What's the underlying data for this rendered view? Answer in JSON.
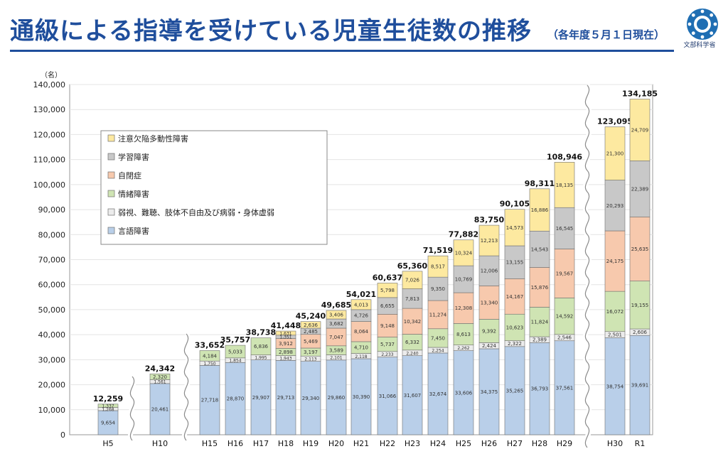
{
  "header": {
    "title": "通級による指導を受けている児童生徒数の推移",
    "subtitle": "（各年度５月１日現在）",
    "logo_text": "文部科学省"
  },
  "colors": {
    "title": "#1f4e9c",
    "adhd": "#fde9a0",
    "ld": "#c8c8c8",
    "autism": "#f7c9ad",
    "emotional": "#cfe4b3",
    "physical": "#ececec",
    "speech": "#b9cfe9"
  },
  "chart_data": {
    "type": "bar",
    "stacked": true,
    "ylabel": "（名）",
    "ylim": [
      0,
      140000
    ],
    "yticks": [
      "0",
      "10,000",
      "20,000",
      "30,000",
      "40,000",
      "50,000",
      "60,000",
      "70,000",
      "80,000",
      "90,000",
      "100,000",
      "110,000",
      "120,000",
      "130,000",
      "140,000"
    ],
    "grid": true,
    "legend_position": "top-left",
    "categories": [
      "H5",
      "H10",
      "H15",
      "H16",
      "H17",
      "H18",
      "H19",
      "H20",
      "H21",
      "H22",
      "H23",
      "H24",
      "H25",
      "H26",
      "H27",
      "H28",
      "H29",
      "H30",
      "R1"
    ],
    "totals": [
      12259,
      24342,
      33652,
      35757,
      38738,
      41448,
      45240,
      49685,
      54021,
      60637,
      65360,
      71519,
      77882,
      83750,
      90105,
      98311,
      108946,
      123095,
      134185
    ],
    "total_labels": [
      "12,259",
      "24,342",
      "33,652",
      "35,757",
      "38,738",
      "41,448",
      "45,240",
      "49,685",
      "54,021",
      "60,637",
      "65,360",
      "71,519",
      "77,882",
      "83,750",
      "90,105",
      "98,311",
      "108,946",
      "123,095",
      "134,185"
    ],
    "series": [
      {
        "name": "言語障害",
        "color": "#b9cfe9",
        "values": [
          9654,
          20461,
          27718,
          28870,
          29907,
          29713,
          29340,
          29860,
          30390,
          31066,
          31607,
          32674,
          33606,
          34375,
          35265,
          36793,
          37561,
          38754,
          39691
        ],
        "labels": [
          "9,654",
          "20,461",
          "27,718",
          "28,870",
          "29,907",
          "29,713",
          "29,340",
          "29,860",
          "30,390",
          "31,066",
          "31,607",
          "32,674",
          "33,606",
          "34,375",
          "35,265",
          "36,793",
          "37,561",
          "38,754",
          "39,691"
        ]
      },
      {
        "name": "弱視、難聴、肢体不自由及び病弱・身体虚弱",
        "color": "#ececec",
        "values": [
          1268,
          1561,
          1750,
          1854,
          1995,
          1943,
          2113,
          2101,
          2118,
          2233,
          2240,
          2254,
          2262,
          2424,
          2322,
          2389,
          2546,
          2501,
          2606
        ],
        "labels": [
          "1,268",
          "1,561",
          "1,750",
          "1,854",
          "1,995",
          "1,943",
          "2,113",
          "2,101",
          "2,118",
          "2,233",
          "2,240",
          "2,254",
          "2,262",
          "2,424",
          "2,322",
          "2,389",
          "2,546",
          "2,501",
          "2,606"
        ]
      },
      {
        "name": "情緒障害",
        "color": "#cfe4b3",
        "values": [
          1337,
          2320,
          4184,
          5033,
          6836,
          2898,
          3197,
          3589,
          4710,
          5737,
          6332,
          7450,
          8613,
          9392,
          10623,
          11824,
          14592,
          16072,
          19155
        ],
        "labels": [
          "1,337",
          "2,320",
          "4,184",
          "5,033",
          "6,836",
          "2,898",
          "3,197",
          "3,589",
          "4,710",
          "5,737",
          "6,332",
          "7,450",
          "8,613",
          "9,392",
          "10,623",
          "11,824",
          "14,592",
          "16,072",
          "19,155"
        ]
      },
      {
        "name": "自閉症",
        "color": "#f7c9ad",
        "values": [
          0,
          0,
          0,
          0,
          0,
          3912,
          5469,
          7047,
          8064,
          9148,
          10342,
          11274,
          12308,
          13340,
          14167,
          15876,
          19567,
          24175,
          25635
        ],
        "labels": [
          "",
          "",
          "",
          "",
          "",
          "3,912",
          "5,469",
          "7,047",
          "8,064",
          "9,148",
          "10,342",
          "11,274",
          "12,308",
          "13,340",
          "14,167",
          "15,876",
          "19,567",
          "24,175",
          "25,635"
        ]
      },
      {
        "name": "学習障害",
        "color": "#c8c8c8",
        "values": [
          0,
          0,
          0,
          0,
          0,
          1351,
          2485,
          3682,
          4726,
          6655,
          7813,
          9350,
          10769,
          12006,
          13155,
          14543,
          16545,
          20293,
          22389
        ],
        "labels": [
          "",
          "",
          "",
          "",
          "",
          "1,351",
          "2,485",
          "3,682",
          "4,726",
          "6,655",
          "7,813",
          "9,350",
          "10,769",
          "12,006",
          "13,155",
          "14,543",
          "16,545",
          "20,293",
          "22,389"
        ]
      },
      {
        "name": "注意欠陥多動性障害",
        "color": "#fde9a0",
        "values": [
          0,
          0,
          0,
          0,
          0,
          1631,
          2636,
          3406,
          4013,
          5798,
          7026,
          8517,
          10324,
          12213,
          14573,
          16886,
          18135,
          21300,
          24709
        ],
        "labels": [
          "",
          "",
          "",
          "",
          "",
          "1,631",
          "2,636",
          "3,406",
          "4,013",
          "5,798",
          "7,026",
          "8,517",
          "10,324",
          "12,213",
          "14,573",
          "16,886",
          "18,135",
          "21,300",
          "24,709"
        ]
      }
    ],
    "legend_order": [
      "注意欠陥多動性障害",
      "学習障害",
      "自閉症",
      "情緒障害",
      "弱視、難聴、肢体不自由及び病弱・身体虚弱",
      "言語障害"
    ]
  }
}
